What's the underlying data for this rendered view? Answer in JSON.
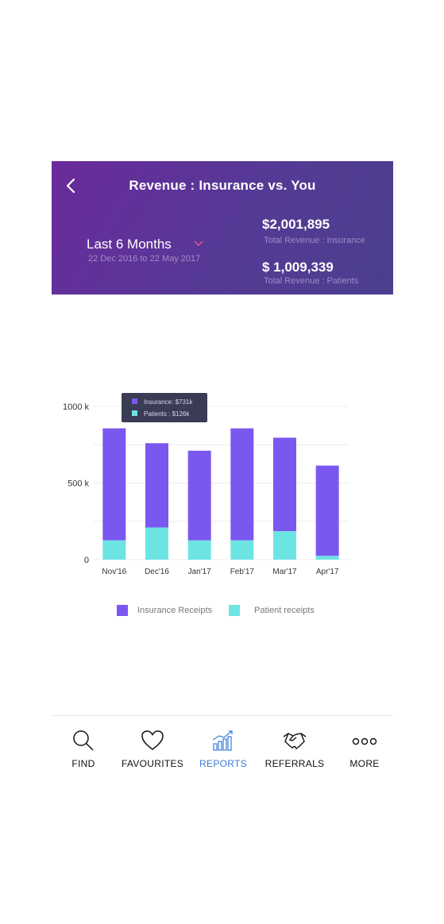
{
  "header": {
    "title": "Revenue : Insurance vs. You",
    "period_label": "Last 6 Months",
    "date_range": "22 Dec 2016 to 22 May 2017",
    "insurance_amount": "$2,001,895",
    "insurance_label": "Total Revenue : Insurance",
    "patients_amount": "$ 1,009,339",
    "patients_label": "Total Revenue : Patients"
  },
  "chart_data": {
    "type": "bar",
    "stacked": true,
    "categories": [
      "Nov'16",
      "Dec'16",
      "Jan'17",
      "Feb'17",
      "Mar'17",
      "Apr'17"
    ],
    "series": [
      {
        "name": "Patient receipts",
        "color": "#6de4e4",
        "values": [
          126,
          210,
          126,
          126,
          186,
          25
        ]
      },
      {
        "name": "Insurance Receipts",
        "color": "#7a58f0",
        "values": [
          731,
          550,
          585,
          731,
          610,
          589
        ]
      }
    ],
    "y_tick_labels": [
      "0",
      "500 k",
      "1000 k"
    ],
    "ylim": [
      0,
      1000
    ],
    "grid": true,
    "tooltip": {
      "insurance_text": "Insurance: $731k",
      "patients_text": "Patients : $126k"
    }
  },
  "legend": {
    "insurance_label": "Insurance Receipts",
    "patients_label": "Patient receipts"
  },
  "tabbar": {
    "items": [
      {
        "label": "FIND",
        "icon": "search-icon"
      },
      {
        "label": "FAVOURITES",
        "icon": "heart-icon"
      },
      {
        "label": "REPORTS",
        "icon": "reports-chart-icon",
        "active": true
      },
      {
        "label": "REFERRALS",
        "icon": "handshake-icon"
      },
      {
        "label": "MORE",
        "icon": "more-icon"
      }
    ],
    "active_color": "#3a7bd5"
  }
}
